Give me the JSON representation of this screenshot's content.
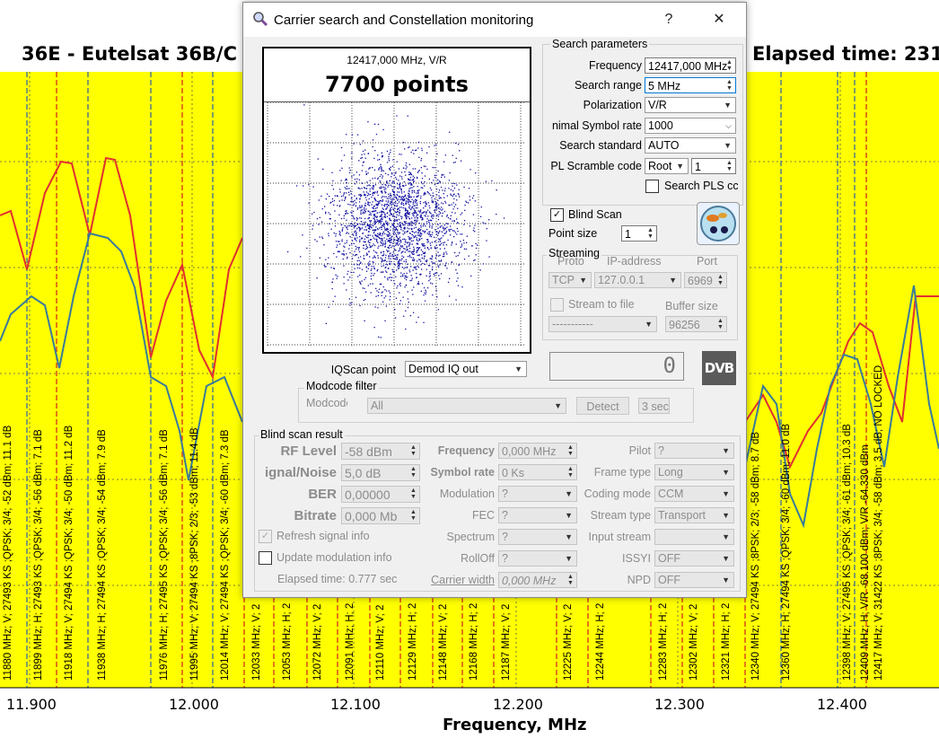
{
  "background": {
    "title": "36E - Eutelsat 36B/C",
    "elapsed": "Elapsed time: 231",
    "x_axis_title": "Frequency, MHz",
    "x_ticks": [
      "11.900",
      "12.000",
      "12.100",
      "12.200",
      "12.300",
      "12.400"
    ],
    "carrier_labels_left": [
      "11880 MHz; V; 27493 KS ;QPSK; 3/4; -52 dBm; 11.1 dB",
      "11899 MHz; H; 27493 KS ;QPSK; 3/4; -56 dBm; 7.1 dB",
      "11918 MHz; V; 27494 KS ;QPSK; 3/4; -50 dBm; 11.2 dB",
      "11938 MHz; H; 27494 KS ;QPSK; 3/4; -54 dBm; 7.9 dB",
      "11976 MHz; H; 27495 KS ;QPSK; 3/4; -56 dBm; 7.1 dB",
      "11995 MHz; V; 27494 KS ;8PSK; 2/3; -53 dBm; 11.4 dB",
      "12014 MHz; V; 27494 KS ;QPSK; 3/4; -60 dBm; 7.3 dB"
    ],
    "carrier_labels_bottom": [
      "12033 MHz; V; 2",
      "12053 MHz; H; 2",
      "12072 MHz; V; 2",
      "12091 MHz; H; 2",
      "12110 MHz; V; 2",
      "12129 MHz; H; 2",
      "12148 MHz; V; 2",
      "12168 MHz; H; 2",
      "12187 MHz; V; 2",
      "12225 MHz; V; 2",
      "12244 MHz; H; 2",
      "12283 MHz; H; 2",
      "12302 MHz; V; 2",
      "12321 MHz; H; 2"
    ],
    "carrier_labels_right": [
      "12340 MHz; V; 27494 KS ;8PSK; 2/3; -58 dBm; 8.7 dB",
      "12360 MHz; H; 27494 KS ;QPSK; 3/4; -60 dBm; 11.0 dB",
      "12398 MHz; V; 27495 KS ;QPSK; 3/4; -61 dBm; 10.3 dB",
      "12409 MHz; H; V/R -68.100 dBm; V/R -64.330 dBm",
      "12417 MHz; V; 31422 KS ;8PSK; 3/4; -58 dBm; 3.5 dB; NO LOCKED"
    ]
  },
  "dialog": {
    "title": "Carrier search and Constellation monitoring",
    "help_label": "?",
    "close_label": "✕",
    "constellation": {
      "freq_label": "12417,000 MHz, V/R",
      "points_label": "7700 points"
    },
    "search_params": {
      "title": "Search parameters",
      "frequency_label": "Frequency",
      "frequency_value": "12417,000 MHz",
      "range_label": "Search range",
      "range_value": "5 MHz",
      "polarization_label": "Polarization",
      "polarization_value": "V/R",
      "min_sr_label": "nimal Symbol rate",
      "min_sr_value": "1000",
      "standard_label": "Search standard",
      "standard_value": "AUTO",
      "pls_label": "PL Scramble code",
      "pls_mode": "Root",
      "pls_value": "1",
      "search_pls_label": "Search PLS cc"
    },
    "blind_scan_label": "Blind Scan",
    "point_size_label": "Point size",
    "point_size_value": "1",
    "streaming": {
      "title": "Streaming",
      "proto_header": "Proto",
      "ip_header": "IP-address",
      "port_header": "Port",
      "proto_value": "TCP",
      "ip_value": "127.0.0.1",
      "port_value": "6969",
      "stream_to_file_label": "Stream to file",
      "file_value": "-----------",
      "buffer_label": "Buffer size",
      "buffer_value": "96256"
    },
    "lcd_value": "0",
    "dvb_logo": "DVB",
    "iqscan_label": "IQScan point",
    "iqscan_value": "Demod IQ out",
    "modcode": {
      "title": "Modcode filter",
      "label": "Modcode",
      "value": "All",
      "detect_label": "Detect",
      "sec_value": "3 sec"
    },
    "result": {
      "title": "Blind scan result",
      "rf_level_label": "RF Level",
      "rf_level_value": "-58 dBm",
      "snr_label": "ignal/Noise",
      "snr_value": "5,0 dB",
      "ber_label": "BER",
      "ber_value": "0,00000",
      "bitrate_label": "Bitrate",
      "bitrate_value": "0,000 Mb",
      "frequency_label": "Frequency",
      "frequency_value": "0,000 MHz",
      "symbol_rate_label": "Symbol rate",
      "symbol_rate_value": "0 Ks",
      "modulation_label": "Modulation",
      "modulation_value": "?",
      "fec_label": "FEC",
      "fec_value": "?",
      "spectrum_label": "Spectrum",
      "spectrum_value": "?",
      "rolloff_label": "RollOff",
      "rolloff_value": "?",
      "carrier_width_label": "Carrier width",
      "carrier_width_value": "0,000 MHz",
      "pilot_label": "Pilot",
      "pilot_value": "?",
      "frame_type_label": "Frame type",
      "frame_type_value": "Long",
      "coding_mode_label": "Coding mode",
      "coding_mode_value": "CCM",
      "stream_type_label": "Stream type",
      "stream_type_value": "Transport",
      "input_stream_label": "Input stream",
      "input_stream_value": "",
      "issyi_label": "ISSYI",
      "issyi_value": "OFF",
      "npd_label": "NPD",
      "npd_value": "OFF",
      "refresh_label": "Refresh signal info",
      "update_label": "Update modulation info",
      "elapsed_label": "Elapsed time: 0.777 sec"
    }
  }
}
